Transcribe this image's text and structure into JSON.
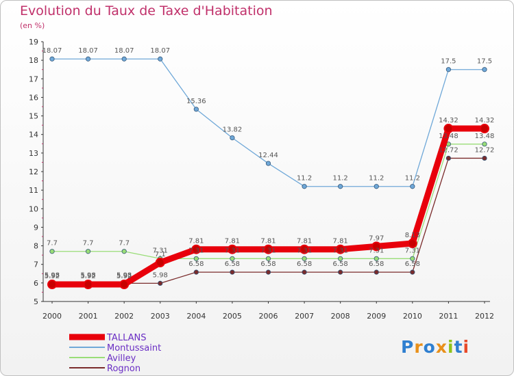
{
  "chart_data": {
    "type": "line",
    "title": "Evolution du Taux de Taxe d'Habitation",
    "ylabel": "(en %)",
    "x": [
      "2000",
      "2001",
      "2002",
      "2003",
      "2004",
      "2005",
      "2006",
      "2007",
      "2008",
      "2009",
      "2010",
      "2011",
      "2012"
    ],
    "ylim": [
      5,
      19
    ],
    "yticks": [
      5,
      6,
      7,
      8,
      9,
      10,
      11,
      12,
      13,
      14,
      15,
      16,
      17,
      18,
      19
    ],
    "grid": false,
    "legend": "bottom-left",
    "series": [
      {
        "name": "TALLANS",
        "color": "#e8000b",
        "values": [
          5.92,
          5.92,
          5.92,
          7.1,
          7.81,
          7.81,
          7.81,
          7.81,
          7.81,
          7.97,
          8.13,
          14.32,
          14.32
        ],
        "labels": [
          "5.92",
          "5.92",
          "5.92",
          "7.1",
          "7.81",
          "7.81",
          "7.81",
          "7.81",
          "7.81",
          "7.97",
          "8.13",
          "14.32",
          "14.32"
        ]
      },
      {
        "name": "Montussaint",
        "color": "#6fa8d8",
        "values": [
          18.07,
          18.07,
          18.07,
          18.07,
          15.36,
          13.82,
          12.44,
          11.2,
          11.2,
          11.2,
          11.2,
          17.5,
          17.5
        ],
        "labels": [
          "18.07",
          "18.07",
          "18.07",
          "18.07",
          "15.36",
          "13.82",
          "12.44",
          "11.2",
          "11.2",
          "11.2",
          "11.2",
          "17.5",
          "17.5"
        ]
      },
      {
        "name": "Avilley",
        "color": "#99dd77",
        "values": [
          7.7,
          7.7,
          7.7,
          7.31,
          7.31,
          7.31,
          7.31,
          7.31,
          7.31,
          7.31,
          7.31,
          13.48,
          13.48
        ],
        "labels": [
          "7.7",
          "7.7",
          "7.7",
          "7.31",
          "7.31",
          "7.31",
          "7.31",
          "7.31",
          "7.31",
          "7.31",
          "7.31",
          "13.48",
          "13.48"
        ]
      },
      {
        "name": "Rognon",
        "color": "#7a2b2b",
        "values": [
          5.98,
          5.98,
          5.98,
          5.98,
          6.58,
          6.58,
          6.58,
          6.58,
          6.58,
          6.58,
          6.58,
          12.72,
          12.72
        ],
        "labels": [
          "5.98",
          "5.98",
          "5.98",
          "5.98",
          "6.58",
          "6.58",
          "6.58",
          "6.58",
          "6.58",
          "6.58",
          "6.58",
          "12.72",
          "12.72"
        ]
      }
    ]
  },
  "logo": {
    "text": "Proxiti"
  }
}
